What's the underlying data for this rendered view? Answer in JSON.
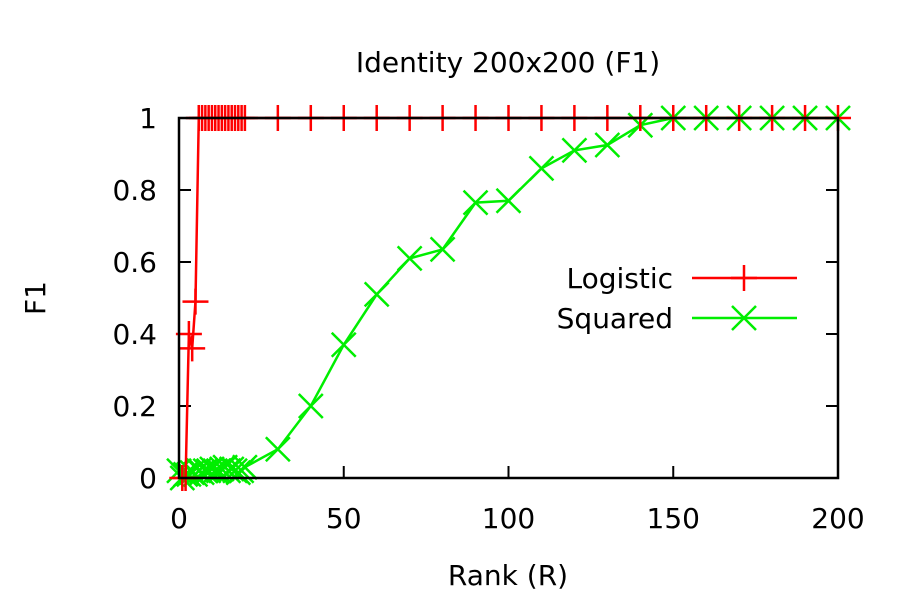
{
  "chart_data": {
    "type": "line",
    "title": "Identity 200x200 (F1)",
    "xlabel": "Rank (R)",
    "ylabel": "F1",
    "xlim": [
      0,
      200
    ],
    "ylim": [
      0,
      1
    ],
    "xticks": [
      0,
      50,
      100,
      150,
      200
    ],
    "yticks": [
      0,
      0.2,
      0.4,
      0.6,
      0.8,
      1
    ],
    "xtick_labels": [
      "0",
      "50",
      "100",
      "150",
      "200"
    ],
    "ytick_labels": [
      "0",
      "0.2",
      "0.4",
      "0.6",
      "0.8",
      "1"
    ],
    "grid": false,
    "legend_position": "right",
    "series": [
      {
        "name": "Logistic",
        "color": "#ff0000",
        "marker": "plus",
        "x": [
          1,
          2,
          3,
          4,
          5,
          6,
          7,
          8,
          9,
          10,
          11,
          12,
          13,
          14,
          15,
          16,
          17,
          18,
          19,
          20,
          30,
          40,
          50,
          60,
          70,
          80,
          90,
          100,
          110,
          120,
          130,
          140,
          150,
          160,
          170,
          180,
          190,
          200
        ],
        "y": [
          0,
          0,
          0.4,
          0.36,
          0.49,
          1,
          1,
          1,
          1,
          1,
          1,
          1,
          1,
          1,
          1,
          1,
          1,
          1,
          1,
          1,
          1,
          1,
          1,
          1,
          1,
          1,
          1,
          1,
          1,
          1,
          1,
          1,
          1,
          1,
          1,
          1,
          1,
          1
        ]
      },
      {
        "name": "Squared",
        "color": "#00ee00",
        "marker": "x",
        "x": [
          0,
          1,
          2,
          3,
          4,
          5,
          6,
          7,
          8,
          9,
          10,
          11,
          12,
          13,
          14,
          15,
          16,
          17,
          18,
          19,
          20,
          30,
          40,
          50,
          60,
          70,
          80,
          90,
          100,
          110,
          120,
          130,
          140,
          150,
          160,
          170,
          180,
          190,
          200
        ],
        "y": [
          0.02,
          0,
          0.01,
          0.01,
          0.015,
          0.01,
          0.02,
          0.015,
          0.02,
          0.02,
          0.025,
          0.02,
          0.02,
          0.025,
          0.03,
          0.02,
          0.025,
          0.02,
          0.015,
          0.02,
          0.03,
          0.08,
          0.2,
          0.37,
          0.51,
          0.61,
          0.635,
          0.765,
          0.77,
          0.86,
          0.91,
          0.925,
          0.98,
          1,
          1,
          1,
          1,
          1,
          1
        ]
      }
    ]
  }
}
